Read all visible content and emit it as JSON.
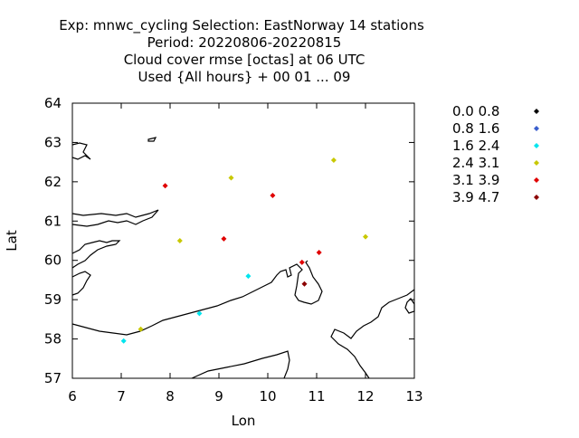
{
  "chart_data": {
    "type": "scatter",
    "title_lines": [
      "Exp: mnwc_cycling   Selection: EastNorway     14 stations",
      "Period: 20220806-20220815",
      "Cloud cover rmse [octas] at  06 UTC",
      "Used {All hours} + 00 01 ... 09"
    ],
    "xlabel": "Lon",
    "ylabel": "Lat",
    "xlim": [
      6,
      13
    ],
    "ylim": [
      57,
      64
    ],
    "x_ticks": [
      "6",
      "7",
      "8",
      "9",
      "10",
      "11",
      "12",
      "13"
    ],
    "y_ticks": [
      "57",
      "58",
      "59",
      "60",
      "61",
      "62",
      "63",
      "64"
    ],
    "grid": false,
    "legend_position": "right",
    "legend": [
      {
        "label": "0.0 0.8",
        "color": "#000000"
      },
      {
        "label": "0.8 1.6",
        "color": "#3a5fcd"
      },
      {
        "label": "1.6 2.4",
        "color": "#00e5ee"
      },
      {
        "label": "2.4 3.1",
        "color": "#c8c800"
      },
      {
        "label": "3.1 3.9",
        "color": "#e00000"
      },
      {
        "label": "3.9 4.7",
        "color": "#8b0000"
      }
    ],
    "points": [
      {
        "lon": 7.9,
        "lat": 61.9,
        "cls": 4
      },
      {
        "lon": 9.25,
        "lat": 62.1,
        "cls": 3
      },
      {
        "lon": 11.35,
        "lat": 62.55,
        "cls": 3
      },
      {
        "lon": 10.1,
        "lat": 61.65,
        "cls": 4
      },
      {
        "lon": 8.2,
        "lat": 60.5,
        "cls": 3
      },
      {
        "lon": 9.1,
        "lat": 60.55,
        "cls": 4
      },
      {
        "lon": 12.0,
        "lat": 60.6,
        "cls": 3
      },
      {
        "lon": 11.05,
        "lat": 60.2,
        "cls": 4
      },
      {
        "lon": 10.7,
        "lat": 59.95,
        "cls": 4
      },
      {
        "lon": 9.6,
        "lat": 59.6,
        "cls": 2
      },
      {
        "lon": 10.75,
        "lat": 59.4,
        "cls": 5
      },
      {
        "lon": 8.6,
        "lat": 58.65,
        "cls": 2
      },
      {
        "lon": 7.4,
        "lat": 58.25,
        "cls": 3
      },
      {
        "lon": 7.05,
        "lat": 57.95,
        "cls": 2
      }
    ]
  }
}
